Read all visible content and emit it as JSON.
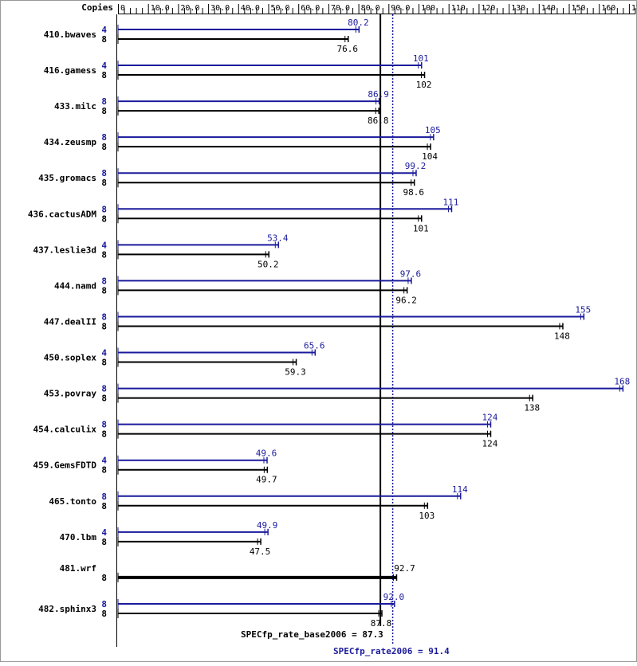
{
  "chart_data": {
    "type": "bar",
    "header_label": "Copies",
    "xlim": [
      0,
      172
    ],
    "tick_values": [
      0,
      10,
      20,
      30,
      40,
      50,
      60,
      70,
      80,
      90,
      100,
      110,
      120,
      130,
      140,
      150,
      160,
      170
    ],
    "tick_labels": [
      "0",
      "10.0",
      "20.0",
      "30.0",
      "40.0",
      "50.0",
      "60.0",
      "70.0",
      "80.0",
      "90.0",
      "100",
      "110",
      "120",
      "130",
      "140",
      "150",
      "160",
      "170"
    ],
    "colors": {
      "peak": "#1a1a9c",
      "base": "#000000"
    },
    "benchmarks": [
      {
        "name": "410.bwaves",
        "peak": {
          "copies": "4",
          "value": 80.2,
          "label": "80.2"
        },
        "base": {
          "copies": "8",
          "value": 76.6,
          "label": "76.6"
        }
      },
      {
        "name": "416.gamess",
        "peak": {
          "copies": "4",
          "value": 101,
          "label": "101"
        },
        "base": {
          "copies": "8",
          "value": 102,
          "label": "102"
        }
      },
      {
        "name": "433.milc",
        "peak": {
          "copies": "8",
          "value": 86.9,
          "label": "86.9"
        },
        "base": {
          "copies": "8",
          "value": 86.8,
          "label": "86.8"
        }
      },
      {
        "name": "434.zeusmp",
        "peak": {
          "copies": "8",
          "value": 105,
          "label": "105"
        },
        "base": {
          "copies": "8",
          "value": 104,
          "label": "104"
        }
      },
      {
        "name": "435.gromacs",
        "peak": {
          "copies": "8",
          "value": 99.2,
          "label": "99.2"
        },
        "base": {
          "copies": "8",
          "value": 98.6,
          "label": "98.6"
        }
      },
      {
        "name": "436.cactusADM",
        "peak": {
          "copies": "8",
          "value": 111,
          "label": "111"
        },
        "base": {
          "copies": "8",
          "value": 101,
          "label": "101"
        }
      },
      {
        "name": "437.leslie3d",
        "peak": {
          "copies": "4",
          "value": 53.4,
          "label": "53.4"
        },
        "base": {
          "copies": "8",
          "value": 50.2,
          "label": "50.2"
        }
      },
      {
        "name": "444.namd",
        "peak": {
          "copies": "8",
          "value": 97.6,
          "label": "97.6"
        },
        "base": {
          "copies": "8",
          "value": 96.2,
          "label": "96.2"
        }
      },
      {
        "name": "447.dealII",
        "peak": {
          "copies": "8",
          "value": 155,
          "label": "155"
        },
        "base": {
          "copies": "8",
          "value": 148,
          "label": "148"
        }
      },
      {
        "name": "450.soplex",
        "peak": {
          "copies": "4",
          "value": 65.6,
          "label": "65.6"
        },
        "base": {
          "copies": "8",
          "value": 59.3,
          "label": "59.3"
        }
      },
      {
        "name": "453.povray",
        "peak": {
          "copies": "8",
          "value": 168,
          "label": "168"
        },
        "base": {
          "copies": "8",
          "value": 138,
          "label": "138"
        }
      },
      {
        "name": "454.calculix",
        "peak": {
          "copies": "8",
          "value": 124,
          "label": "124"
        },
        "base": {
          "copies": "8",
          "value": 124,
          "label": "124"
        }
      },
      {
        "name": "459.GemsFDTD",
        "peak": {
          "copies": "4",
          "value": 49.6,
          "label": "49.6"
        },
        "base": {
          "copies": "8",
          "value": 49.7,
          "label": "49.7"
        }
      },
      {
        "name": "465.tonto",
        "peak": {
          "copies": "8",
          "value": 114,
          "label": "114"
        },
        "base": {
          "copies": "8",
          "value": 103,
          "label": "103"
        }
      },
      {
        "name": "470.lbm",
        "peak": {
          "copies": "4",
          "value": 49.9,
          "label": "49.9"
        },
        "base": {
          "copies": "8",
          "value": 47.5,
          "label": "47.5"
        }
      },
      {
        "name": "481.wrf",
        "peak": null,
        "base": {
          "copies": "8",
          "value": 92.7,
          "label": "92.7"
        }
      },
      {
        "name": "482.sphinx3",
        "peak": {
          "copies": "8",
          "value": 92.0,
          "label": "92.0"
        },
        "base": {
          "copies": "8",
          "value": 87.8,
          "label": "87.8"
        }
      }
    ],
    "summary": {
      "base": {
        "label": "SPECfp_rate_base2006 = 87.3",
        "value": 87.3
      },
      "peak": {
        "label": "SPECfp_rate2006 = 91.4",
        "value": 91.4
      }
    }
  }
}
